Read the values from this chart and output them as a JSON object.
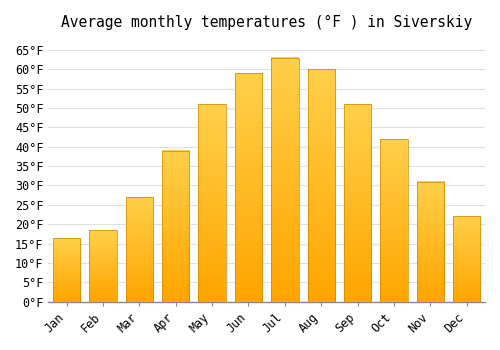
{
  "title": "Average monthly temperatures (°F ) in Siverskiy",
  "months": [
    "Jan",
    "Feb",
    "Mar",
    "Apr",
    "May",
    "Jun",
    "Jul",
    "Aug",
    "Sep",
    "Oct",
    "Nov",
    "Dec"
  ],
  "values": [
    16.5,
    18.5,
    27,
    39,
    51,
    59,
    63,
    60,
    51,
    42,
    31,
    22
  ],
  "bar_color_bottom": "#FFA500",
  "bar_color_top": "#FFD04A",
  "ylim": [
    0,
    68
  ],
  "yticks": [
    0,
    5,
    10,
    15,
    20,
    25,
    30,
    35,
    40,
    45,
    50,
    55,
    60,
    65
  ],
  "ytick_labels": [
    "0°F",
    "5°F",
    "10°F",
    "15°F",
    "20°F",
    "25°F",
    "30°F",
    "35°F",
    "40°F",
    "45°F",
    "50°F",
    "55°F",
    "60°F",
    "65°F"
  ],
  "background_color": "#ffffff",
  "grid_color": "#e0e0e0",
  "title_fontsize": 10.5,
  "tick_fontsize": 8.5,
  "bar_width": 0.75
}
